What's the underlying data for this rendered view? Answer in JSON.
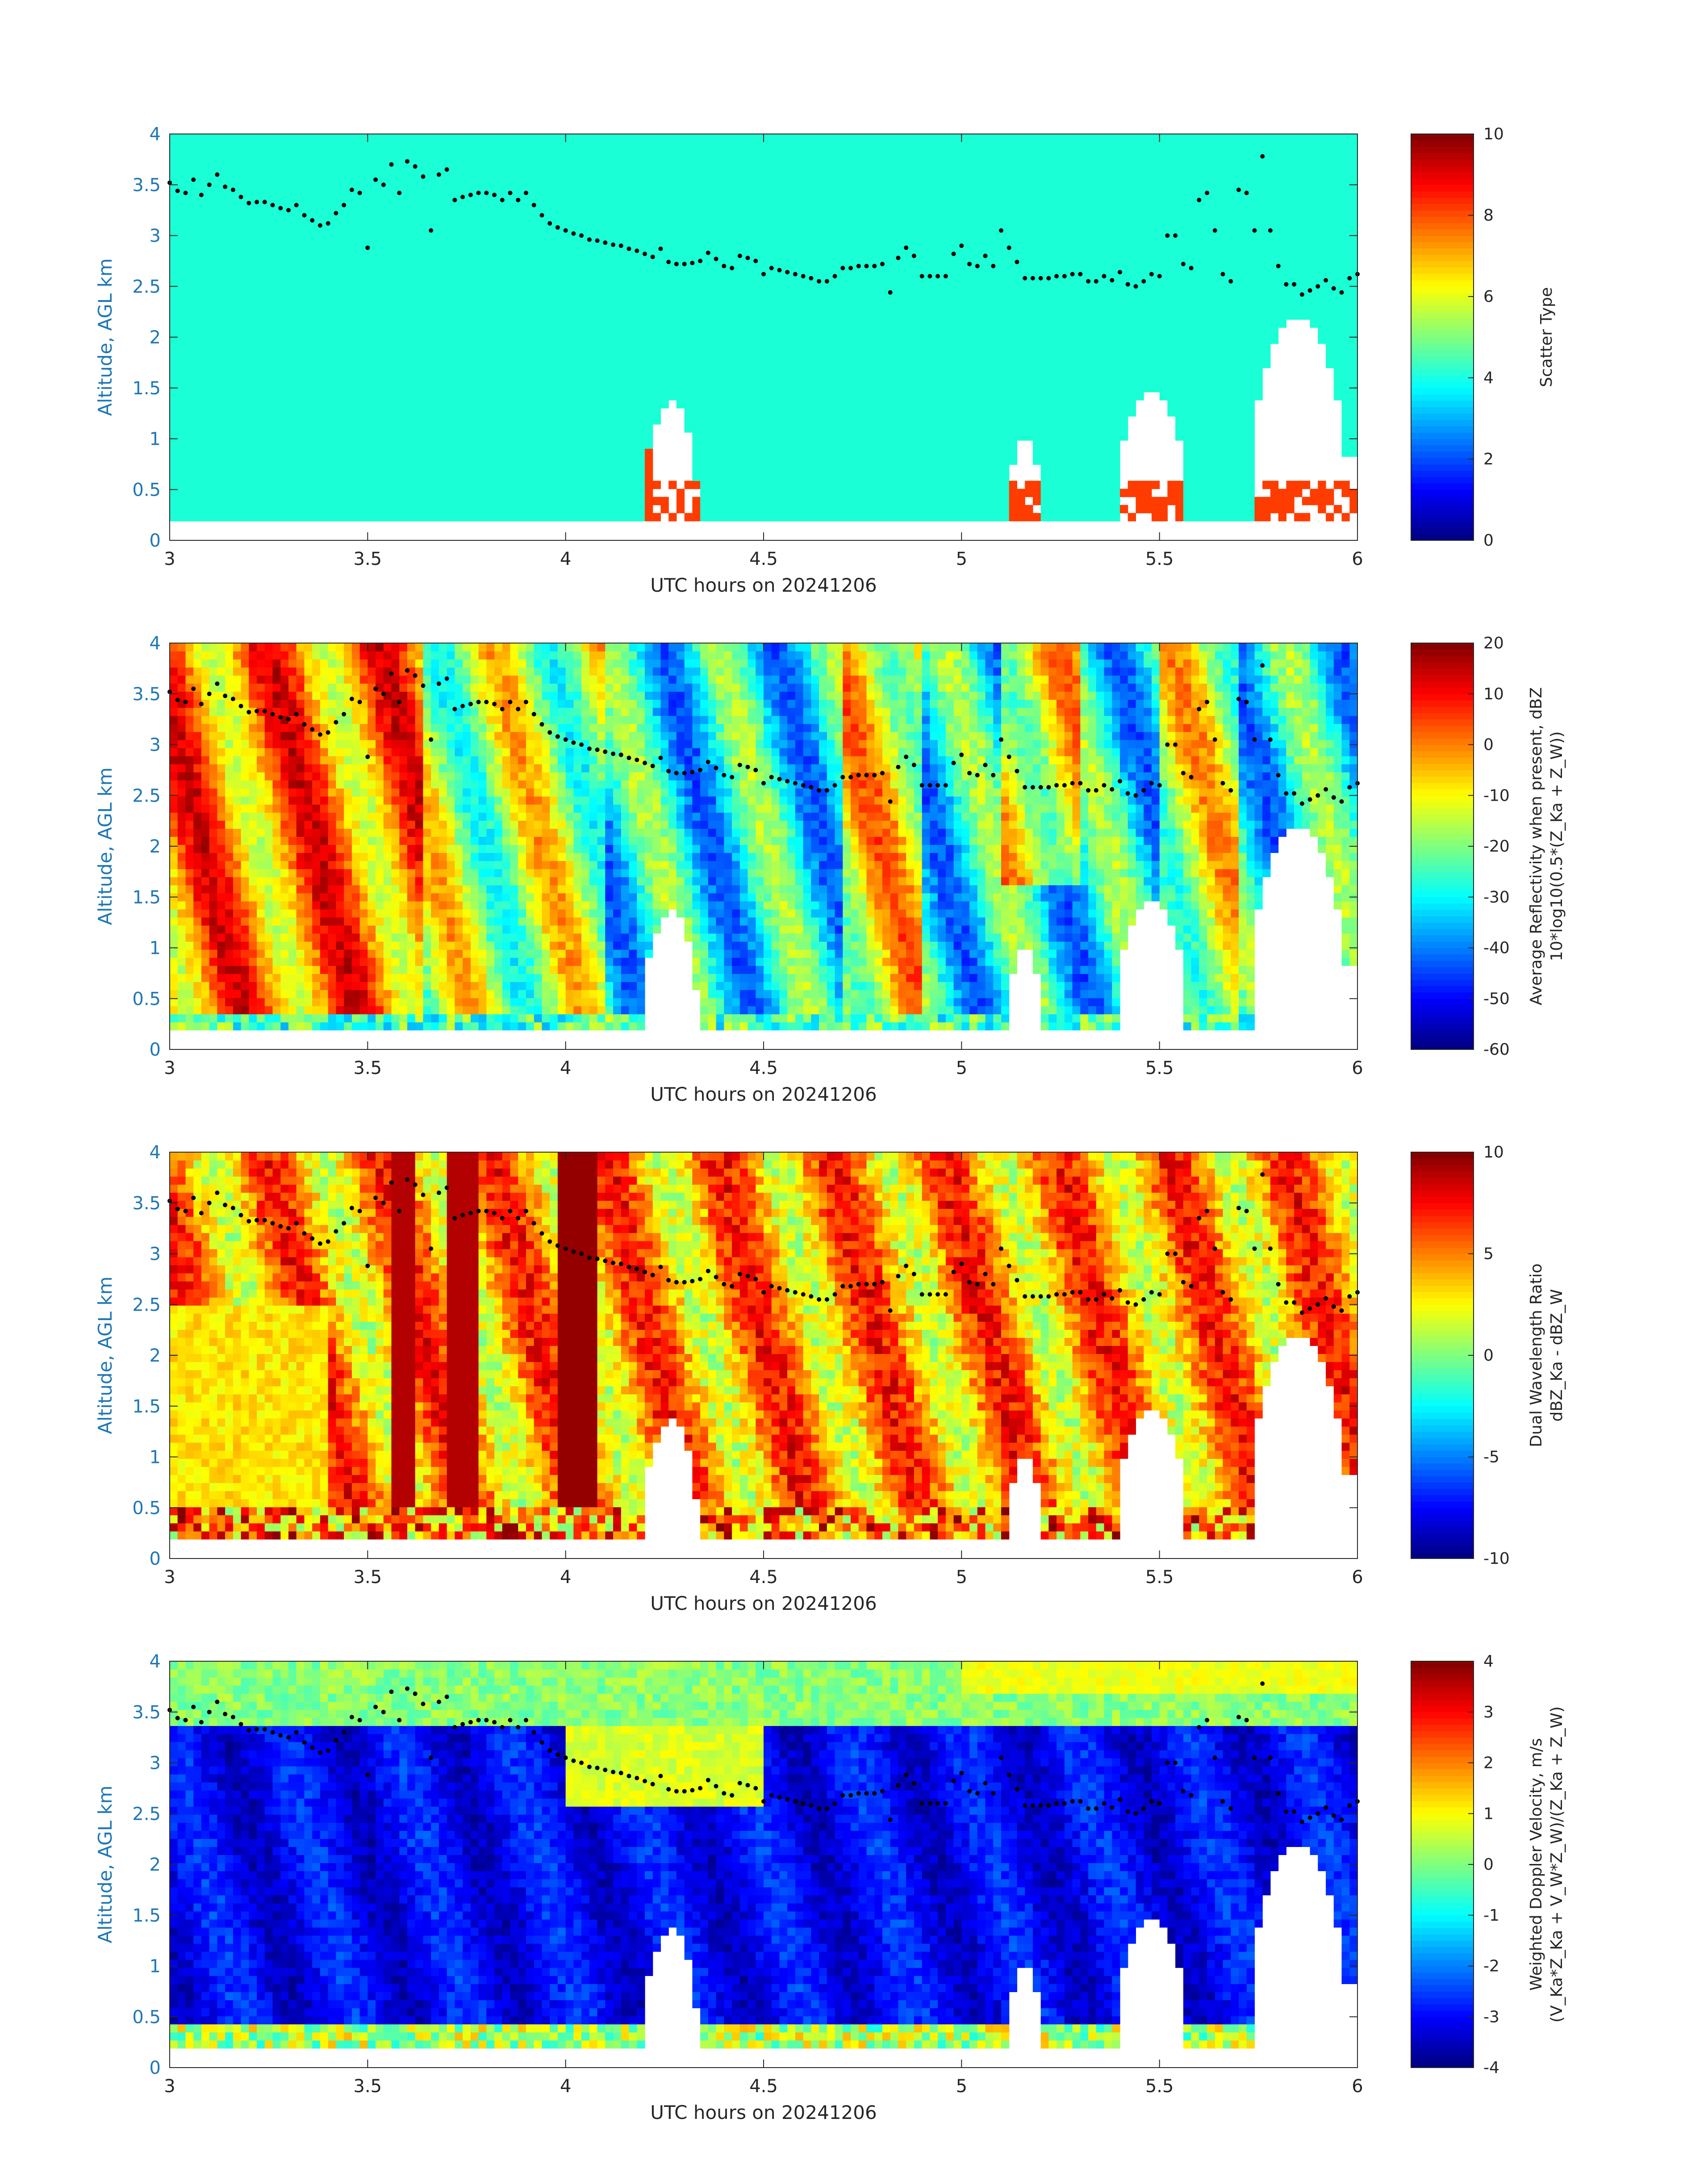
{
  "colors": {
    "axis_text": "#262626",
    "y_axis_text": "#1f77b4",
    "background": "#ffffff",
    "melt_marker": "#000000"
  },
  "chart_data": [
    {
      "type": "heatmap",
      "name": "scatter_type",
      "xlabel": "UTC hours on 20241206",
      "ylabel": "Altitude, AGL km",
      "xlim": [
        3,
        6
      ],
      "ylim": [
        0,
        4
      ],
      "xticks": [
        "3",
        "3.5",
        "4",
        "4.5",
        "5",
        "5.5",
        "6"
      ],
      "yticks": [
        "0",
        "0.5",
        "1",
        "1.5",
        "2",
        "2.5",
        "3",
        "3.5",
        "4"
      ],
      "colorbar": {
        "label_lines": [
          "Scatter Type"
        ],
        "ticks": [
          "0",
          "2",
          "4",
          "6",
          "8",
          "10"
        ],
        "range": [
          0,
          10
        ]
      },
      "colormap": "jet"
    },
    {
      "type": "heatmap",
      "name": "avg_reflectivity",
      "xlabel": "UTC hours on 20241206",
      "ylabel": "Altitude, AGL km",
      "xlim": [
        3,
        6
      ],
      "ylim": [
        0,
        4
      ],
      "xticks": [
        "3",
        "3.5",
        "4",
        "4.5",
        "5",
        "5.5",
        "6"
      ],
      "yticks": [
        "0",
        "0.5",
        "1",
        "1.5",
        "2",
        "2.5",
        "3",
        "3.5",
        "4"
      ],
      "colorbar": {
        "label_lines": [
          "Average Reflectivity when present, dBZ",
          "10*log10(0.5*(Z_Ka + Z_W))"
        ],
        "ticks": [
          "-60",
          "-50",
          "-40",
          "-30",
          "-20",
          "-10",
          "0",
          "10",
          "20"
        ],
        "range": [
          -60,
          20
        ]
      },
      "colormap": "jet"
    },
    {
      "type": "heatmap",
      "name": "dual_wavelength_ratio",
      "xlabel": "UTC hours on 20241206",
      "ylabel": "Altitude, AGL km",
      "xlim": [
        3,
        6
      ],
      "ylim": [
        0,
        4
      ],
      "xticks": [
        "3",
        "3.5",
        "4",
        "4.5",
        "5",
        "5.5",
        "6"
      ],
      "yticks": [
        "0",
        "0.5",
        "1",
        "1.5",
        "2",
        "2.5",
        "3",
        "3.5",
        "4"
      ],
      "colorbar": {
        "label_lines": [
          "Dual Wavelength Ratio",
          "dBZ_Ka - dBZ_W"
        ],
        "ticks": [
          "-10",
          "-5",
          "0",
          "5",
          "10"
        ],
        "range": [
          -10,
          10
        ]
      },
      "colormap": "jet"
    },
    {
      "type": "heatmap",
      "name": "weighted_doppler_velocity",
      "xlabel": "UTC hours on 20241206",
      "ylabel": "Altitude, AGL km",
      "xlim": [
        3,
        6
      ],
      "ylim": [
        0,
        4
      ],
      "xticks": [
        "3",
        "3.5",
        "4",
        "4.5",
        "5",
        "5.5",
        "6"
      ],
      "yticks": [
        "0",
        "0.5",
        "1",
        "1.5",
        "2",
        "2.5",
        "3",
        "3.5",
        "4"
      ],
      "colorbar": {
        "label_lines": [
          "Weighted Doppler Velocity, m/s",
          "(V_Ka*Z_Ka + V_W*Z_W)/(Z_Ka + Z_W)"
        ],
        "ticks": [
          "-4",
          "-3",
          "-2",
          "-1",
          "0",
          "1",
          "2",
          "3",
          "4"
        ],
        "range": [
          -4,
          4
        ]
      },
      "colormap": "jet"
    }
  ],
  "melting_layer_points": [
    [
      3.0,
      3.52
    ],
    [
      3.02,
      3.44
    ],
    [
      3.04,
      3.42
    ],
    [
      3.06,
      3.55
    ],
    [
      3.08,
      3.4
    ],
    [
      3.1,
      3.5
    ],
    [
      3.12,
      3.6
    ],
    [
      3.14,
      3.48
    ],
    [
      3.16,
      3.45
    ],
    [
      3.18,
      3.38
    ],
    [
      3.2,
      3.32
    ],
    [
      3.22,
      3.33
    ],
    [
      3.24,
      3.33
    ],
    [
      3.26,
      3.3
    ],
    [
      3.28,
      3.27
    ],
    [
      3.3,
      3.25
    ],
    [
      3.32,
      3.3
    ],
    [
      3.34,
      3.2
    ],
    [
      3.36,
      3.15
    ],
    [
      3.38,
      3.1
    ],
    [
      3.4,
      3.12
    ],
    [
      3.42,
      3.22
    ],
    [
      3.44,
      3.3
    ],
    [
      3.46,
      3.45
    ],
    [
      3.48,
      3.42
    ],
    [
      3.5,
      2.88
    ],
    [
      3.52,
      3.55
    ],
    [
      3.54,
      3.5
    ],
    [
      3.56,
      3.7
    ],
    [
      3.58,
      3.42
    ],
    [
      3.6,
      3.73
    ],
    [
      3.62,
      3.68
    ],
    [
      3.64,
      3.58
    ],
    [
      3.66,
      3.05
    ],
    [
      3.68,
      3.6
    ],
    [
      3.7,
      3.65
    ],
    [
      3.72,
      3.35
    ],
    [
      3.74,
      3.38
    ],
    [
      3.76,
      3.4
    ],
    [
      3.78,
      3.42
    ],
    [
      3.8,
      3.42
    ],
    [
      3.82,
      3.4
    ],
    [
      3.84,
      3.35
    ],
    [
      3.86,
      3.42
    ],
    [
      3.88,
      3.35
    ],
    [
      3.9,
      3.42
    ],
    [
      3.92,
      3.3
    ],
    [
      3.94,
      3.2
    ],
    [
      3.96,
      3.12
    ],
    [
      3.98,
      3.08
    ],
    [
      4.0,
      3.05
    ],
    [
      4.02,
      3.02
    ],
    [
      4.04,
      3.0
    ],
    [
      4.06,
      2.96
    ],
    [
      4.08,
      2.95
    ],
    [
      4.1,
      2.93
    ],
    [
      4.12,
      2.91
    ],
    [
      4.14,
      2.9
    ],
    [
      4.16,
      2.87
    ],
    [
      4.18,
      2.85
    ],
    [
      4.2,
      2.82
    ],
    [
      4.22,
      2.79
    ],
    [
      4.24,
      2.87
    ],
    [
      4.26,
      2.74
    ],
    [
      4.28,
      2.72
    ],
    [
      4.3,
      2.72
    ],
    [
      4.32,
      2.73
    ],
    [
      4.34,
      2.75
    ],
    [
      4.36,
      2.83
    ],
    [
      4.38,
      2.77
    ],
    [
      4.4,
      2.7
    ],
    [
      4.42,
      2.68
    ],
    [
      4.44,
      2.8
    ],
    [
      4.46,
      2.78
    ],
    [
      4.48,
      2.75
    ],
    [
      4.5,
      2.62
    ],
    [
      4.52,
      2.68
    ],
    [
      4.54,
      2.66
    ],
    [
      4.56,
      2.64
    ],
    [
      4.58,
      2.62
    ],
    [
      4.6,
      2.6
    ],
    [
      4.62,
      2.58
    ],
    [
      4.64,
      2.55
    ],
    [
      4.66,
      2.55
    ],
    [
      4.68,
      2.6
    ],
    [
      4.7,
      2.68
    ],
    [
      4.72,
      2.68
    ],
    [
      4.74,
      2.7
    ],
    [
      4.76,
      2.7
    ],
    [
      4.78,
      2.7
    ],
    [
      4.8,
      2.72
    ],
    [
      4.82,
      2.44
    ],
    [
      4.84,
      2.78
    ],
    [
      4.86,
      2.88
    ],
    [
      4.88,
      2.8
    ],
    [
      4.9,
      2.6
    ],
    [
      4.92,
      2.6
    ],
    [
      4.94,
      2.6
    ],
    [
      4.96,
      2.6
    ],
    [
      4.98,
      2.82
    ],
    [
      5.0,
      2.9
    ],
    [
      5.02,
      2.72
    ],
    [
      5.04,
      2.7
    ],
    [
      5.06,
      2.8
    ],
    [
      5.08,
      2.7
    ],
    [
      5.1,
      3.05
    ],
    [
      5.12,
      2.88
    ],
    [
      5.14,
      2.74
    ],
    [
      5.16,
      2.58
    ],
    [
      5.18,
      2.58
    ],
    [
      5.2,
      2.58
    ],
    [
      5.22,
      2.58
    ],
    [
      5.24,
      2.6
    ],
    [
      5.26,
      2.6
    ],
    [
      5.28,
      2.62
    ],
    [
      5.3,
      2.62
    ],
    [
      5.32,
      2.55
    ],
    [
      5.34,
      2.55
    ],
    [
      5.36,
      2.6
    ],
    [
      5.38,
      2.56
    ],
    [
      5.4,
      2.64
    ],
    [
      5.42,
      2.52
    ],
    [
      5.44,
      2.5
    ],
    [
      5.46,
      2.55
    ],
    [
      5.48,
      2.62
    ],
    [
      5.5,
      2.6
    ],
    [
      5.52,
      3.0
    ],
    [
      5.54,
      3.0
    ],
    [
      5.56,
      2.72
    ],
    [
      5.58,
      2.68
    ],
    [
      5.6,
      3.35
    ],
    [
      5.62,
      3.42
    ],
    [
      5.64,
      3.05
    ],
    [
      5.66,
      2.62
    ],
    [
      5.68,
      2.55
    ],
    [
      5.7,
      3.45
    ],
    [
      5.72,
      3.42
    ],
    [
      5.74,
      3.05
    ],
    [
      5.76,
      3.78
    ],
    [
      5.78,
      3.05
    ],
    [
      5.8,
      2.7
    ],
    [
      5.82,
      2.52
    ],
    [
      5.84,
      2.52
    ],
    [
      5.86,
      2.42
    ],
    [
      5.88,
      2.46
    ],
    [
      5.9,
      2.5
    ],
    [
      5.92,
      2.56
    ],
    [
      5.94,
      2.48
    ],
    [
      5.96,
      2.44
    ],
    [
      5.98,
      2.58
    ],
    [
      6.0,
      2.62
    ]
  ]
}
